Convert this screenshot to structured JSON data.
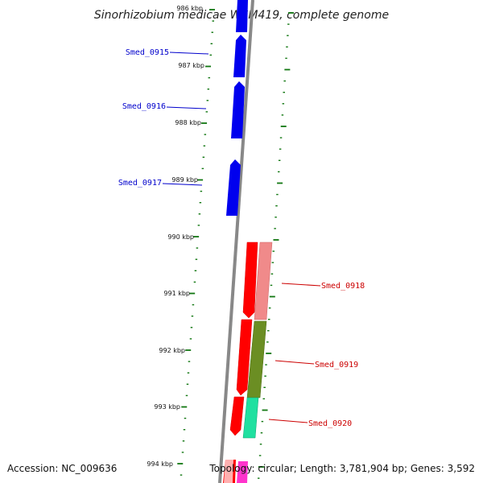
{
  "title": "Sinorhizobium medicae WSM419, complete genome",
  "footer": {
    "accession": "Accession: NC_009636",
    "topology": "Topology: circular; Length: 3,781,904 bp; Genes: 3,592"
  },
  "kbp_labels": [
    "986 kbp",
    "987 kbp",
    "988 kbp",
    "989 kbp",
    "990 kbp",
    "991 kbp",
    "992 kbp",
    "993 kbp",
    "994 kbp"
  ],
  "genes": [
    {
      "name": "Smed_0915",
      "strand": "forward",
      "color": "#0000ee"
    },
    {
      "name": "Smed_0916",
      "strand": "forward",
      "color": "#0000ee"
    },
    {
      "name": "Smed_0917",
      "strand": "forward",
      "color": "#0000ee"
    },
    {
      "name": "Smed_0918",
      "strand": "reverse",
      "color": "#ff0000"
    },
    {
      "name": "Smed_0919",
      "strand": "reverse",
      "color": "#ff0000"
    },
    {
      "name": "Smed_0920",
      "strand": "reverse",
      "color": "#ff0000"
    }
  ],
  "colors": {
    "backbone": "#888888",
    "ticks": "#117711",
    "forward_gene": "#0000ee",
    "reverse_gene": "#ff0000",
    "cog_pink": "#f08a8a",
    "cog_olive": "#6b8e23",
    "cog_teal": "#20e0a0",
    "cog_magenta": "#ff33cc"
  }
}
